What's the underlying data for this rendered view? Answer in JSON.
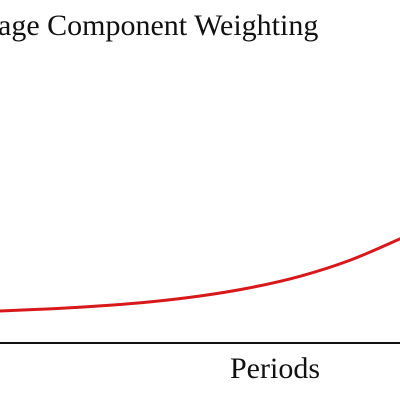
{
  "chart_data": {
    "type": "line",
    "title": "age Component Weighting",
    "xlabel": "Periods",
    "ylabel": "",
    "grid": false,
    "series": [
      {
        "x": [
          0,
          1,
          2,
          3,
          4,
          5,
          6,
          7,
          8
        ],
        "values": [
          0.0,
          0.008,
          0.019,
          0.034,
          0.056,
          0.087,
          0.13,
          0.19,
          0.27
        ],
        "color": "#d7191c"
      }
    ],
    "xlim": [
      0,
      8
    ],
    "ylim": [
      -0.12,
      1.0
    ],
    "axis_color": "#111111"
  }
}
